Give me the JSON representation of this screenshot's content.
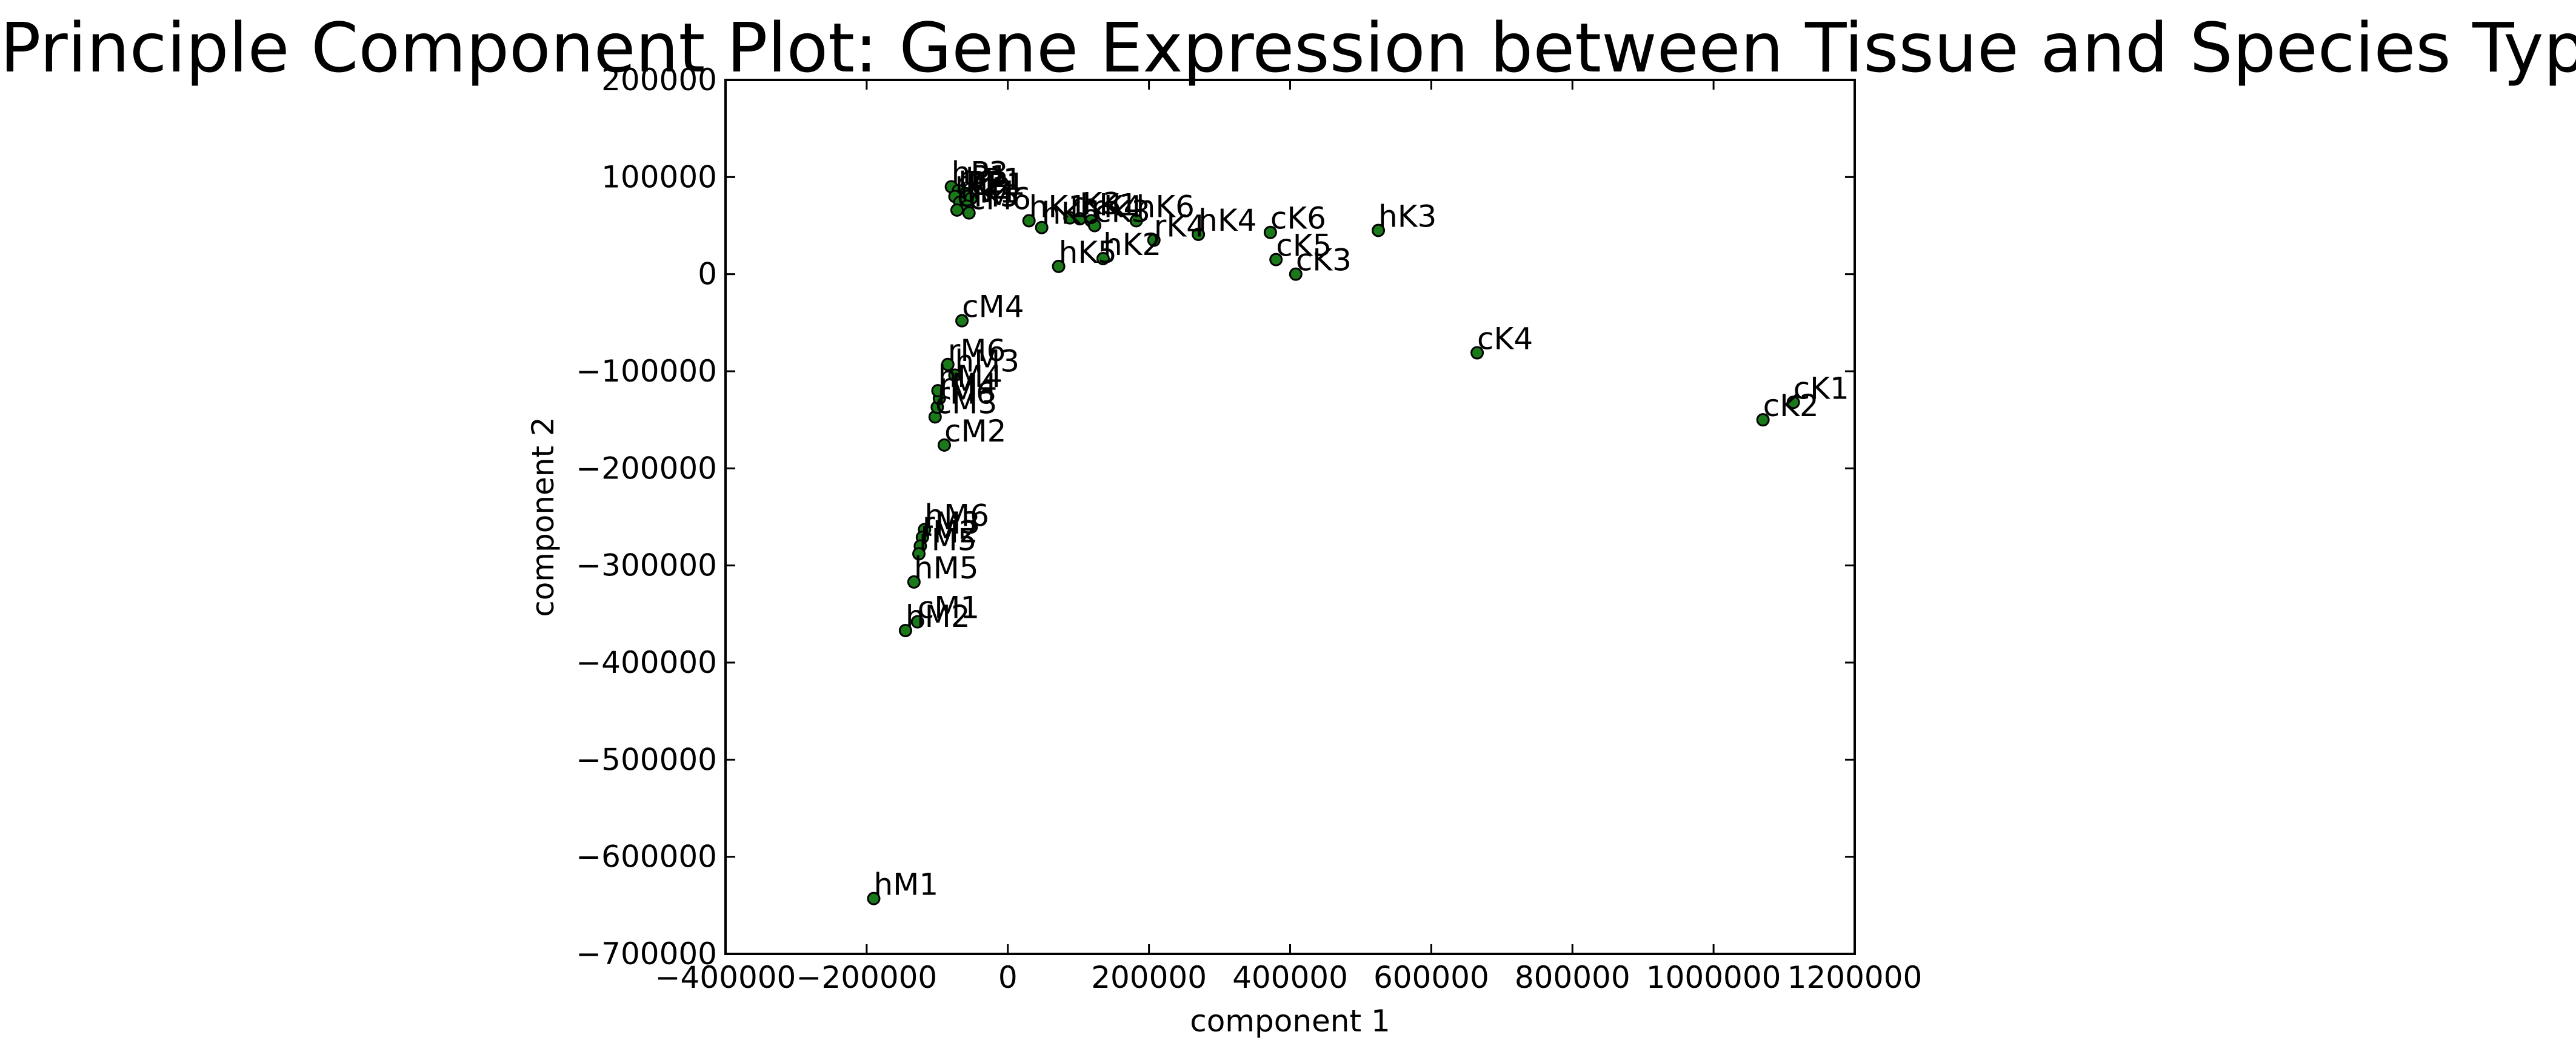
{
  "chart_data": {
    "type": "scatter",
    "title": "Principle Component Plot: Gene Expression between Tissue and Species Type",
    "xlabel": "component 1",
    "ylabel": "component 2",
    "xlim": [
      -400000,
      1200000
    ],
    "ylim": [
      -700000,
      200000
    ],
    "xticks": [
      -400000,
      -200000,
      0,
      200000,
      400000,
      600000,
      800000,
      1000000,
      1200000
    ],
    "yticks": [
      -700000,
      -600000,
      -500000,
      -400000,
      -300000,
      -200000,
      -100000,
      0,
      100000,
      200000
    ],
    "xtick_labels": [
      "−400000",
      "−200000",
      "0",
      "200000",
      "400000",
      "600000",
      "800000",
      "1000000",
      "1200000"
    ],
    "ytick_labels": [
      "−700000",
      "−600000",
      "−500000",
      "−400000",
      "−300000",
      "−200000",
      "−100000",
      "0",
      "100000",
      "200000"
    ],
    "grid": false,
    "marker_color": "#1a7a1a",
    "points": [
      {
        "label": "hM1",
        "x": -190000,
        "y": -643000
      },
      {
        "label": "hM2",
        "x": -145000,
        "y": -367000
      },
      {
        "label": "cM1",
        "x": -128000,
        "y": -358000
      },
      {
        "label": "hM5",
        "x": -133000,
        "y": -317000
      },
      {
        "label": "hM6",
        "x": -118000,
        "y": -263000
      },
      {
        "label": "rM3",
        "x": -121000,
        "y": -271000
      },
      {
        "label": "rM2",
        "x": -124000,
        "y": -280000
      },
      {
        "label": "rM5",
        "x": -126000,
        "y": -288000
      },
      {
        "label": "cM2",
        "x": -90000,
        "y": -176000
      },
      {
        "label": "cM3",
        "x": -103000,
        "y": -147000
      },
      {
        "label": "rM6",
        "x": -100000,
        "y": -137000
      },
      {
        "label": "rM4",
        "x": -97000,
        "y": -128000
      },
      {
        "label": "hM4",
        "x": -99000,
        "y": -120000
      },
      {
        "label": "hM3",
        "x": -75000,
        "y": -104000
      },
      {
        "label": "rM6",
        "x": -85000,
        "y": -93000
      },
      {
        "label": "cM4",
        "x": -65000,
        "y": -48000
      },
      {
        "label": "hP3",
        "x": -80000,
        "y": 90000
      },
      {
        "label": "rP1",
        "x": -70000,
        "y": 86000
      },
      {
        "label": "hP1",
        "x": -60000,
        "y": 83000
      },
      {
        "label": "rP2",
        "x": -75000,
        "y": 80000
      },
      {
        "label": "cP1",
        "x": -52000,
        "y": 78000
      },
      {
        "label": "rK2",
        "x": -68000,
        "y": 74000
      },
      {
        "label": "rK1",
        "x": -58000,
        "y": 70000
      },
      {
        "label": "cM5",
        "x": -72000,
        "y": 66000
      },
      {
        "label": "cM6",
        "x": -55000,
        "y": 63000
      },
      {
        "label": "hK1",
        "x": 30000,
        "y": 55000
      },
      {
        "label": "hK6",
        "x": 48000,
        "y": 48000
      },
      {
        "label": "rK3",
        "x": 88000,
        "y": 58000
      },
      {
        "label": "hK1",
        "x": 102000,
        "y": 57000
      },
      {
        "label": "rK4",
        "x": 118000,
        "y": 55000
      },
      {
        "label": "cK3",
        "x": 123000,
        "y": 50000
      },
      {
        "label": "hK6",
        "x": 182000,
        "y": 55000
      },
      {
        "label": "rK4",
        "x": 207000,
        "y": 35000
      },
      {
        "label": "hK4",
        "x": 270000,
        "y": 41000
      },
      {
        "label": "hK5",
        "x": 72000,
        "y": 8000
      },
      {
        "label": "hK2",
        "x": 135000,
        "y": 16000
      },
      {
        "label": "cK6",
        "x": 372000,
        "y": 43000
      },
      {
        "label": "hK3",
        "x": 525000,
        "y": 45000
      },
      {
        "label": "cK5",
        "x": 380000,
        "y": 15000
      },
      {
        "label": "cK3",
        "x": 408000,
        "y": 0
      },
      {
        "label": "cK4",
        "x": 665000,
        "y": -81000
      },
      {
        "label": "cK1",
        "x": 1113000,
        "y": -132000
      },
      {
        "label": "cK2",
        "x": 1070000,
        "y": -150000
      }
    ]
  }
}
